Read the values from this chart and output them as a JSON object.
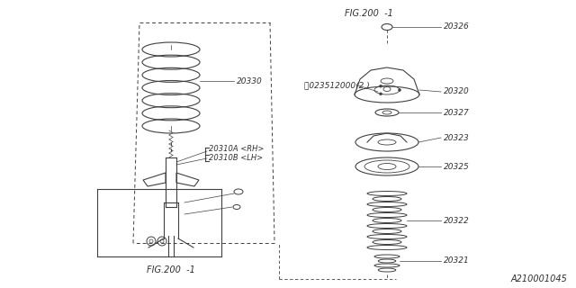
{
  "bg_color": "#ffffff",
  "colors": {
    "line": "#404040",
    "text": "#303030",
    "bg": "#ffffff"
  },
  "label_texts": {
    "20330": "20330",
    "20310A_RH": "20310A <RH>",
    "20310B_LH": "20310B <LH>",
    "20326": "20326",
    "N023512000_2": "Ⓝ023512000(2 )",
    "20320": "20320",
    "20327": "20327",
    "20323": "20323",
    "20325": "20325",
    "20322": "20322",
    "20321": "20321",
    "fig200_bottom": "FIG.200  -1",
    "fig200_top": "FIG.200  -1",
    "diagram_id": "A210001045"
  }
}
